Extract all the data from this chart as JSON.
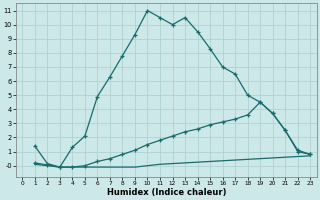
{
  "xlabel": "Humidex (Indice chaleur)",
  "bg_color": "#cce8e8",
  "line_color": "#1a6b6b",
  "grid_color": "#aacece",
  "xlim": [
    -0.5,
    23.5
  ],
  "ylim": [
    -0.8,
    11.5
  ],
  "xticks": [
    0,
    1,
    2,
    3,
    4,
    5,
    6,
    7,
    8,
    9,
    10,
    11,
    12,
    13,
    14,
    15,
    16,
    17,
    18,
    19,
    20,
    21,
    22,
    23
  ],
  "yticks": [
    0,
    1,
    2,
    3,
    4,
    5,
    6,
    7,
    8,
    9,
    10,
    11
  ],
  "ytick_labels": [
    "-0",
    "1",
    "2",
    "3",
    "4",
    "5",
    "6",
    "7",
    "8",
    "9",
    "10",
    "11"
  ],
  "curve1_x": [
    1,
    2,
    3,
    4,
    5,
    6,
    7,
    8,
    9,
    10,
    11,
    12,
    13,
    14,
    15,
    16,
    17,
    18,
    19,
    20,
    21,
    22,
    23
  ],
  "curve1_y": [
    1.4,
    0.15,
    -0.1,
    1.3,
    2.1,
    4.9,
    6.3,
    7.8,
    9.3,
    11.0,
    10.5,
    10.0,
    10.5,
    9.5,
    8.3,
    7.0,
    6.5,
    5.0,
    4.5,
    3.7,
    2.5,
    1.0,
    0.8
  ],
  "curve2_x": [
    1,
    2,
    3,
    4,
    5,
    6,
    7,
    8,
    9,
    10,
    11,
    12,
    13,
    14,
    15,
    16,
    17,
    18,
    19,
    20,
    21,
    22,
    23
  ],
  "curve2_y": [
    0.2,
    0.05,
    -0.1,
    -0.1,
    0.0,
    0.3,
    0.5,
    0.8,
    1.1,
    1.5,
    1.8,
    2.1,
    2.4,
    2.6,
    2.9,
    3.1,
    3.3,
    3.6,
    4.5,
    3.7,
    2.5,
    1.1,
    0.8
  ],
  "curve3_x": [
    1,
    2,
    3,
    4,
    5,
    6,
    7,
    8,
    9,
    10,
    11,
    12,
    13,
    14,
    15,
    16,
    17,
    18,
    19,
    20,
    21,
    22,
    23
  ],
  "curve3_y": [
    0.1,
    0.0,
    -0.1,
    -0.1,
    -0.1,
    -0.1,
    -0.1,
    -0.1,
    -0.1,
    0.0,
    0.1,
    0.15,
    0.2,
    0.25,
    0.3,
    0.35,
    0.4,
    0.45,
    0.5,
    0.55,
    0.6,
    0.65,
    0.7
  ],
  "marker": "+",
  "markersize": 3.5,
  "linewidth": 0.9
}
